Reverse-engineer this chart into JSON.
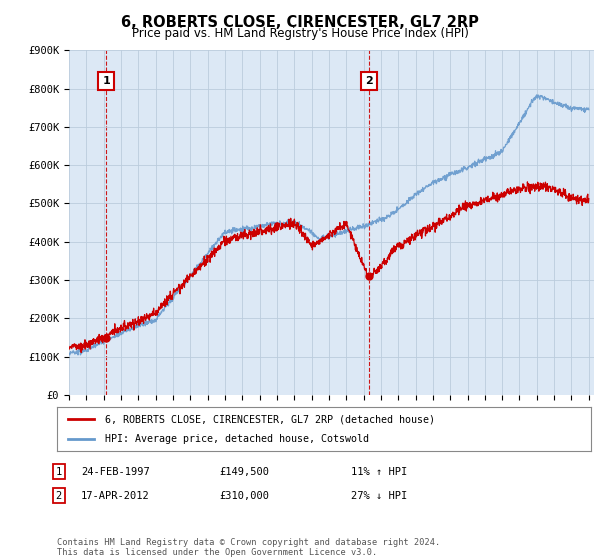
{
  "title": "6, ROBERTS CLOSE, CIRENCESTER, GL7 2RP",
  "subtitle": "Price paid vs. HM Land Registry's House Price Index (HPI)",
  "ylabel_ticks": [
    "£0",
    "£100K",
    "£200K",
    "£300K",
    "£400K",
    "£500K",
    "£600K",
    "£700K",
    "£800K",
    "£900K"
  ],
  "ytick_values": [
    0,
    100000,
    200000,
    300000,
    400000,
    500000,
    600000,
    700000,
    800000,
    900000
  ],
  "ylim": [
    0,
    900000
  ],
  "sale1": {
    "date": "24-FEB-1997",
    "price": 149500,
    "label": "1",
    "year": 1997.15
  },
  "sale2": {
    "date": "17-APR-2012",
    "price": 310000,
    "label": "2",
    "year": 2012.3
  },
  "legend_line1": "6, ROBERTS CLOSE, CIRENCESTER, GL7 2RP (detached house)",
  "legend_line2": "HPI: Average price, detached house, Cotswold",
  "table_rows": [
    {
      "num": "1",
      "date": "24-FEB-1997",
      "price": "£149,500",
      "hpi": "11% ↑ HPI"
    },
    {
      "num": "2",
      "date": "17-APR-2012",
      "price": "£310,000",
      "hpi": "27% ↓ HPI"
    }
  ],
  "footer": "Contains HM Land Registry data © Crown copyright and database right 2024.\nThis data is licensed under the Open Government Licence v3.0.",
  "line_color_red": "#cc0000",
  "line_color_blue": "#6699cc",
  "marker_box_color": "#cc0000",
  "vline_color": "#cc0000",
  "grid_color": "#bbccdd",
  "plot_bg_color": "#dce8f5",
  "bg_color": "#ffffff",
  "marker_dot_color": "#cc0000"
}
